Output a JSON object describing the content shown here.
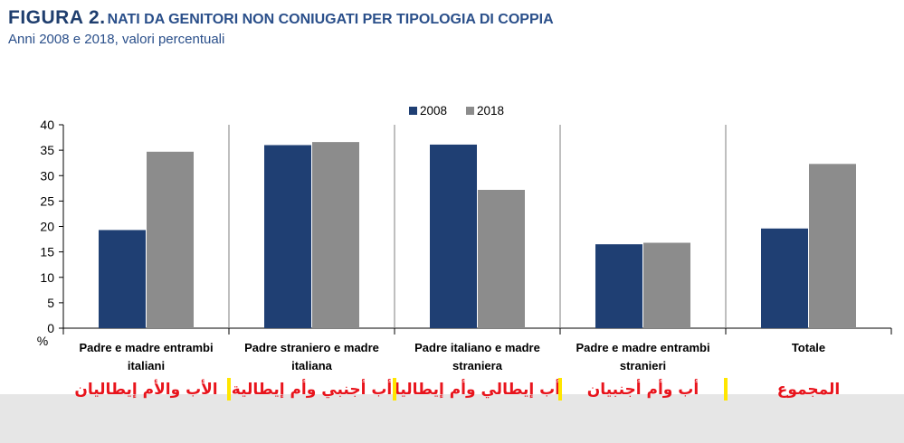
{
  "header": {
    "figure_number": "FIGURA 2.",
    "title": "NATI DA GENITORI NON CONIUGATI PER TIPOLOGIA DI COPPIA",
    "subtitle": "Anni 2008 e 2018, valori percentuali"
  },
  "colors": {
    "s2008": "#1f3f73",
    "s2018": "#8c8c8c",
    "annotation": "#e8141c",
    "separator_mark": "#ffe600"
  },
  "chart_data": {
    "type": "bar",
    "y_unit": "%",
    "ylim": [
      0,
      40
    ],
    "yticks": [
      0,
      5,
      10,
      15,
      20,
      25,
      30,
      35,
      40
    ],
    "grid": false,
    "legend_position": "top-center",
    "categories": [
      "Padre e madre entrambi italiani",
      "Padre straniero e madre italiana",
      "Padre italiano e madre straniera",
      "Padre e madre entrambi stranieri",
      "Totale"
    ],
    "category_label_lines": [
      [
        "Padre e madre entrambi",
        "italiani"
      ],
      [
        "Padre straniero e madre",
        "italiana"
      ],
      [
        "Padre italiano e madre",
        "straniera"
      ],
      [
        "Padre e madre entrambi",
        "stranieri"
      ],
      [
        "Totale"
      ]
    ],
    "series": [
      {
        "name": "2008",
        "values": [
          19.3,
          36.0,
          36.1,
          16.5,
          19.6
        ]
      },
      {
        "name": "2018",
        "values": [
          34.7,
          36.6,
          27.2,
          16.8,
          32.3
        ]
      }
    ],
    "annotations": [
      "الأب والأم إيطاليان",
      "أب أجنبي وأم إيطالية",
      "أب إيطالي وأم إيطاليا",
      "أب وأم أجنبيان",
      "المجموع"
    ]
  }
}
